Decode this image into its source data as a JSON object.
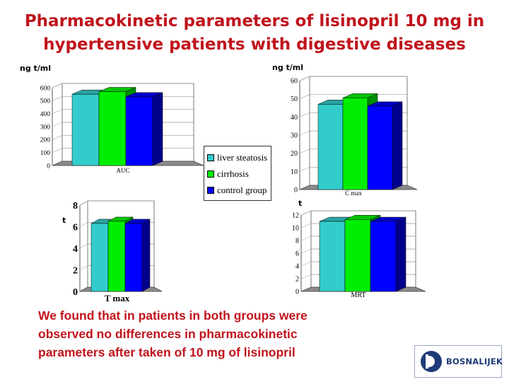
{
  "slide": {
    "title_line1": "Pharmacokinetic parameters of lisinopril 10 mg in",
    "title_line2": "hypertensive patients with digestive diseases",
    "conclusion_line1": "We found that in patients in both groups were",
    "conclusion_line2": "observed no differences in pharmacokinetic",
    "conclusion_line3": "parameters after taken of 10 mg of lisinopril",
    "logo_text": "BOSNALIJEK"
  },
  "legend": {
    "items": [
      {
        "label": "liver steatosis",
        "color": "#33cccc"
      },
      {
        "label": "cirrhosis",
        "color": "#00ee00"
      },
      {
        "label": "control group",
        "color": "#0000ff"
      }
    ]
  },
  "chart_data": [
    {
      "type": "bar",
      "unit_label": "ng t/ml",
      "categories": [
        "AUC"
      ],
      "series": [
        {
          "name": "liver steatosis",
          "values": [
            550
          ]
        },
        {
          "name": "cirrhosis",
          "values": [
            570
          ]
        },
        {
          "name": "control group",
          "values": [
            530
          ]
        }
      ],
      "yticks": [
        "0",
        "100",
        "200",
        "300",
        "400",
        "500",
        "600"
      ],
      "ylim": [
        0,
        600
      ],
      "grid": true
    },
    {
      "type": "bar",
      "unit_label": "ng t/ml",
      "categories": [
        "C max"
      ],
      "series": [
        {
          "name": "liver steatosis",
          "values": [
            47
          ]
        },
        {
          "name": "cirrhosis",
          "values": [
            50.5
          ]
        },
        {
          "name": "control group",
          "values": [
            46
          ]
        }
      ],
      "yticks": [
        "0",
        "10",
        "20",
        "30",
        "40",
        "50",
        "60"
      ],
      "ylim": [
        0,
        60
      ],
      "grid": true
    },
    {
      "type": "bar",
      "unit_label": "t",
      "categories": [
        "T max"
      ],
      "series": [
        {
          "name": "liver steatosis",
          "values": [
            6.3
          ]
        },
        {
          "name": "cirrhosis",
          "values": [
            6.5
          ]
        },
        {
          "name": "control group",
          "values": [
            6.3
          ]
        }
      ],
      "yticks": [
        "0",
        "2",
        "4",
        "6",
        "8"
      ],
      "ylim": [
        0,
        8
      ],
      "grid": true
    },
    {
      "type": "bar",
      "unit_label": "t",
      "categories": [
        "MRT"
      ],
      "series": [
        {
          "name": "liver steatosis",
          "values": [
            11
          ]
        },
        {
          "name": "cirrhosis",
          "values": [
            11.3
          ]
        },
        {
          "name": "control group",
          "values": [
            11
          ]
        }
      ],
      "yticks": [
        "0",
        "2",
        "4",
        "6",
        "8",
        "10",
        "12"
      ],
      "ylim": [
        0,
        12
      ],
      "grid": true
    }
  ]
}
